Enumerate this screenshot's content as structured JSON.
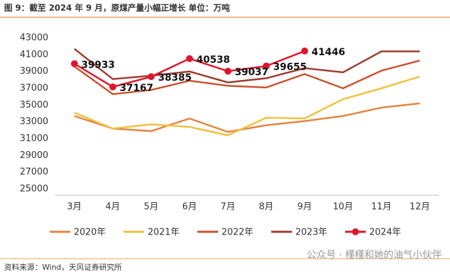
{
  "chart_data": {
    "type": "line",
    "title": "图 9：截至 2024 年 9 月，原煤产量小幅正增长 单位：万吨",
    "source": "资料来源：Wind，天风证券研究所",
    "watermark": "公众号 · 槿槿和她的油气小伙伴",
    "categories": [
      "3月",
      "4月",
      "5月",
      "6月",
      "7月",
      "8月",
      "9月",
      "10月",
      "11月",
      "12月"
    ],
    "ylim": [
      25000,
      43000
    ],
    "yticks": [
      25000,
      27000,
      29000,
      31000,
      33000,
      35000,
      37000,
      39000,
      41000,
      43000
    ],
    "grid": false,
    "legend": "bottom",
    "series": [
      {
        "name": "2020年",
        "color": "#E2843F",
        "values": [
          33700,
          32200,
          31900,
          33400,
          31800,
          32600,
          33100,
          33700,
          34700,
          35200
        ]
      },
      {
        "name": "2021年",
        "color": "#EEC23E",
        "values": [
          34100,
          32200,
          32700,
          32400,
          31400,
          33500,
          33400,
          35700,
          37000,
          38400
        ]
      },
      {
        "name": "2022年",
        "color": "#C9512D",
        "values": [
          39600,
          36300,
          36800,
          37900,
          37300,
          37100,
          38700,
          37000,
          39100,
          40300
        ]
      },
      {
        "name": "2023年",
        "color": "#9E3A2C",
        "values": [
          41700,
          38100,
          38500,
          39000,
          37700,
          38200,
          39400,
          38900,
          41400,
          41400
        ]
      },
      {
        "name": "2024年",
        "color": "#E0142A",
        "markers": true,
        "data_labels": true,
        "values": [
          39933,
          37167,
          38385,
          40538,
          39037,
          39655,
          41446,
          null,
          null,
          null
        ]
      }
    ]
  }
}
